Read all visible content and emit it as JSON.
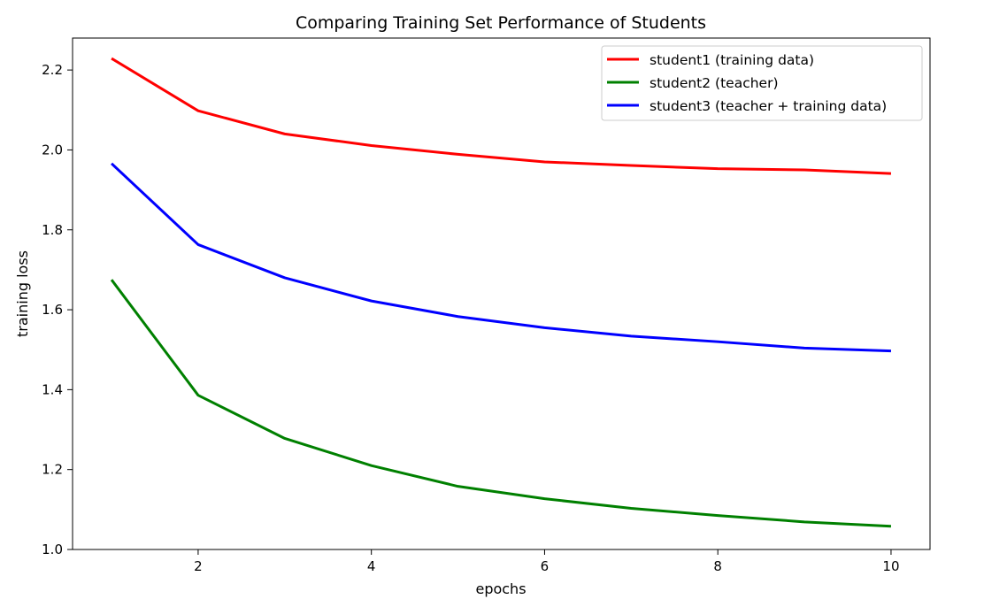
{
  "chart_data": {
    "type": "line",
    "title": "Comparing Training Set Performance of Students",
    "xlabel": "epochs",
    "ylabel": "training loss",
    "x": [
      1,
      2,
      3,
      4,
      5,
      6,
      7,
      8,
      9,
      10
    ],
    "xlim": [
      0.55,
      10.45
    ],
    "ylim": [
      1.0,
      2.28
    ],
    "xticks": [
      2,
      4,
      6,
      8,
      10
    ],
    "yticks": [
      1.0,
      1.2,
      1.4,
      1.6,
      1.8,
      2.0,
      2.2
    ],
    "xtick_labels": [
      "2",
      "4",
      "6",
      "8",
      "10"
    ],
    "ytick_labels": [
      "1.0",
      "1.2",
      "1.4",
      "1.6",
      "1.8",
      "2.0",
      "2.2"
    ],
    "grid": false,
    "legend_position": "top-right",
    "series": [
      {
        "name": "student1 (training data)",
        "color": "#ff0000",
        "values": [
          2.229,
          2.098,
          2.04,
          2.011,
          1.989,
          1.97,
          1.961,
          1.953,
          1.95,
          1.941
        ]
      },
      {
        "name": "student2 (teacher)",
        "color": "#008000",
        "values": [
          1.675,
          1.386,
          1.278,
          1.21,
          1.158,
          1.127,
          1.103,
          1.085,
          1.069,
          1.058
        ]
      },
      {
        "name": "student3 (teacher + training data)",
        "color": "#0000ff",
        "values": [
          1.966,
          1.763,
          1.68,
          1.622,
          1.583,
          1.555,
          1.534,
          1.52,
          1.504,
          1.497
        ]
      }
    ]
  }
}
